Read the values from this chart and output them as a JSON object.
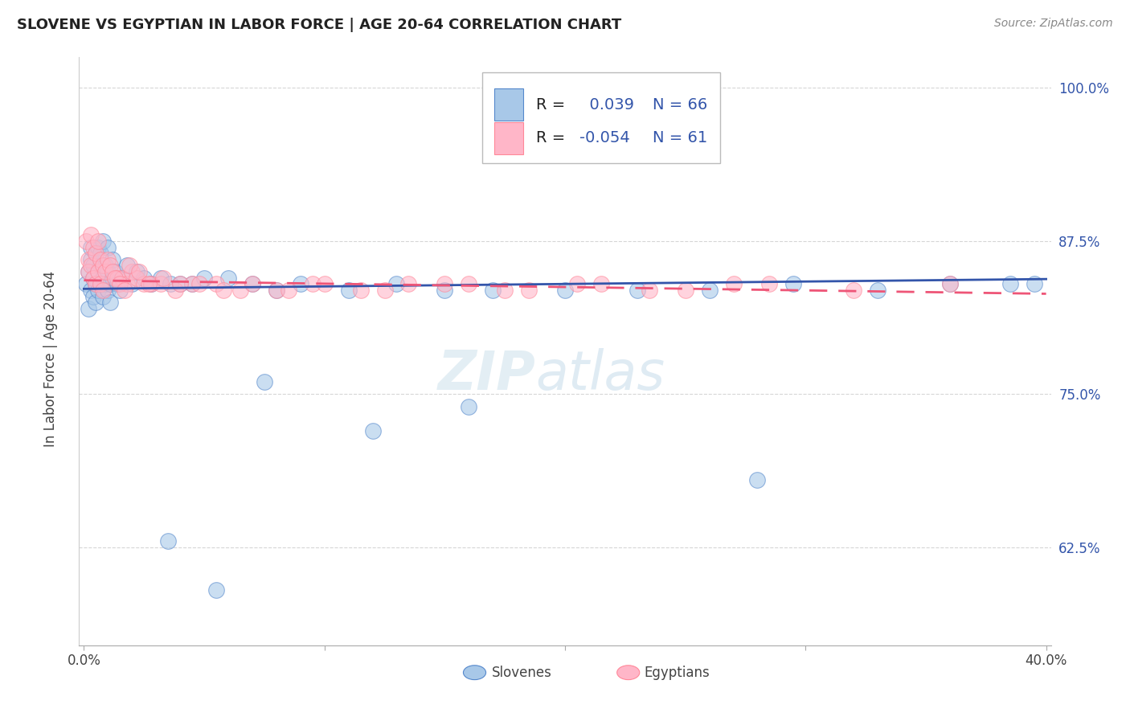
{
  "title": "SLOVENE VS EGYPTIAN IN LABOR FORCE | AGE 20-64 CORRELATION CHART",
  "source_text": "Source: ZipAtlas.com",
  "ylabel": "In Labor Force | Age 20-64",
  "xlim": [
    -0.002,
    0.402
  ],
  "ylim": [
    0.545,
    1.025
  ],
  "xticks": [
    0.0,
    0.1,
    0.2,
    0.3,
    0.4
  ],
  "xticklabels": [
    "0.0%",
    "",
    "",
    "",
    "40.0%"
  ],
  "ytick_positions": [
    0.625,
    0.75,
    0.875,
    1.0
  ],
  "yticklabels": [
    "62.5%",
    "75.0%",
    "87.5%",
    "100.0%"
  ],
  "blue_R": 0.039,
  "blue_N": 66,
  "pink_R": -0.054,
  "pink_N": 61,
  "blue_color": "#A8C8E8",
  "pink_color": "#FFB6C8",
  "blue_edge": "#5588CC",
  "pink_edge": "#FF8899",
  "trend_blue": "#3355AA",
  "trend_pink": "#EE5577",
  "legend_text_color": "#3355AA",
  "watermark_color": "#C8D8E8",
  "background_color": "#FFFFFF",
  "grid_color": "#CCCCCC",
  "title_color": "#222222",
  "blue_scatter_x": [
    0.001,
    0.002,
    0.002,
    0.003,
    0.003,
    0.003,
    0.004,
    0.004,
    0.004,
    0.005,
    0.005,
    0.005,
    0.006,
    0.006,
    0.006,
    0.007,
    0.007,
    0.007,
    0.008,
    0.008,
    0.008,
    0.009,
    0.009,
    0.01,
    0.01,
    0.01,
    0.011,
    0.011,
    0.012,
    0.012,
    0.013,
    0.014,
    0.015,
    0.016,
    0.018,
    0.02,
    0.022,
    0.025,
    0.028,
    0.032,
    0.036,
    0.04,
    0.045,
    0.05,
    0.06,
    0.07,
    0.08,
    0.09,
    0.11,
    0.13,
    0.15,
    0.17,
    0.2,
    0.23,
    0.26,
    0.295,
    0.33,
    0.36,
    0.385,
    0.395,
    0.075,
    0.12,
    0.16,
    0.28,
    0.035,
    0.055
  ],
  "blue_scatter_y": [
    0.84,
    0.85,
    0.82,
    0.86,
    0.835,
    0.87,
    0.855,
    0.83,
    0.845,
    0.865,
    0.84,
    0.825,
    0.85,
    0.87,
    0.835,
    0.855,
    0.84,
    0.865,
    0.845,
    0.83,
    0.875,
    0.855,
    0.84,
    0.87,
    0.835,
    0.85,
    0.84,
    0.825,
    0.845,
    0.86,
    0.85,
    0.84,
    0.835,
    0.845,
    0.855,
    0.84,
    0.85,
    0.845,
    0.84,
    0.845,
    0.84,
    0.84,
    0.84,
    0.845,
    0.845,
    0.84,
    0.835,
    0.84,
    0.835,
    0.84,
    0.835,
    0.835,
    0.835,
    0.835,
    0.835,
    0.84,
    0.835,
    0.84,
    0.84,
    0.84,
    0.76,
    0.72,
    0.74,
    0.68,
    0.63,
    0.59
  ],
  "pink_scatter_x": [
    0.001,
    0.002,
    0.002,
    0.003,
    0.003,
    0.004,
    0.004,
    0.005,
    0.005,
    0.006,
    0.006,
    0.007,
    0.007,
    0.008,
    0.008,
    0.009,
    0.01,
    0.011,
    0.012,
    0.014,
    0.016,
    0.018,
    0.02,
    0.022,
    0.025,
    0.028,
    0.032,
    0.038,
    0.045,
    0.055,
    0.065,
    0.08,
    0.095,
    0.115,
    0.135,
    0.16,
    0.185,
    0.215,
    0.25,
    0.285,
    0.32,
    0.36,
    0.013,
    0.015,
    0.017,
    0.019,
    0.023,
    0.027,
    0.033,
    0.04,
    0.048,
    0.058,
    0.07,
    0.085,
    0.1,
    0.125,
    0.15,
    0.175,
    0.205,
    0.235,
    0.27
  ],
  "pink_scatter_y": [
    0.875,
    0.86,
    0.85,
    0.88,
    0.855,
    0.87,
    0.845,
    0.865,
    0.84,
    0.875,
    0.85,
    0.86,
    0.84,
    0.855,
    0.835,
    0.85,
    0.86,
    0.855,
    0.85,
    0.845,
    0.845,
    0.84,
    0.85,
    0.845,
    0.84,
    0.84,
    0.84,
    0.835,
    0.84,
    0.84,
    0.835,
    0.835,
    0.84,
    0.835,
    0.84,
    0.84,
    0.835,
    0.84,
    0.835,
    0.84,
    0.835,
    0.84,
    0.845,
    0.84,
    0.835,
    0.855,
    0.85,
    0.84,
    0.845,
    0.84,
    0.84,
    0.835,
    0.84,
    0.835,
    0.84,
    0.835,
    0.84,
    0.835,
    0.84,
    0.835,
    0.84
  ]
}
